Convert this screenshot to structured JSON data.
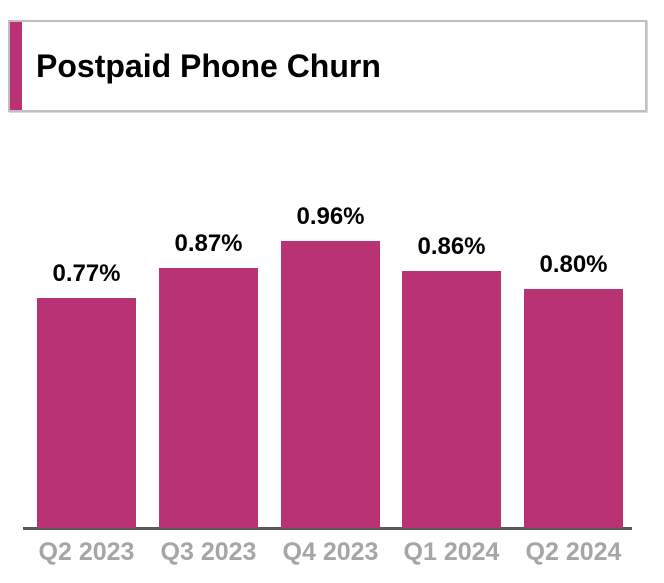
{
  "header": {
    "title": "Postpaid Phone Churn"
  },
  "colors": {
    "accent": "#B93273",
    "title_text": "#000000",
    "box_border": "#BFBFBF",
    "value_label": "#000000",
    "category_label": "#A6A6A6",
    "axis_line": "#595959",
    "background": "#FFFFFF"
  },
  "chart_data": {
    "type": "bar",
    "title": "Postpaid Phone Churn",
    "categories": [
      "Q2 2023",
      "Q3 2023",
      "Q4 2023",
      "Q1 2024",
      "Q2 2024"
    ],
    "values": [
      0.77,
      0.87,
      0.96,
      0.86,
      0.8
    ],
    "value_labels": [
      "0.77%",
      "0.87%",
      "0.96%",
      "0.86%",
      "0.80%"
    ],
    "xlabel": "",
    "ylabel": "",
    "ylim": [
      0,
      1.0
    ],
    "unit": "%",
    "grid": false,
    "legend": false,
    "bar_color": "#B93273",
    "data_labels_position": "above-bar",
    "x_tick_labels_position": "below-axis"
  }
}
